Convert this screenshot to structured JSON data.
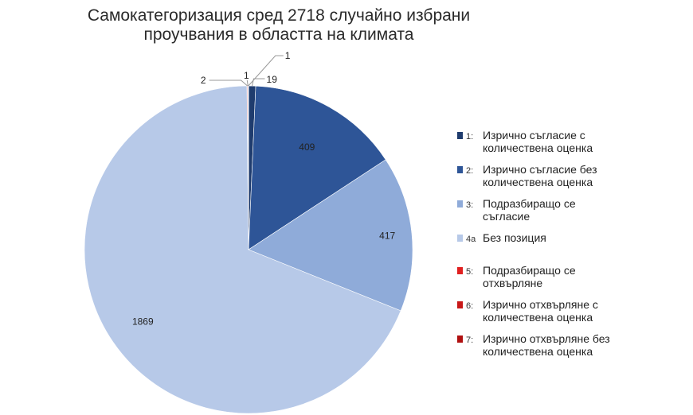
{
  "title_lines": [
    "Самокатегоризация сред 2718 случайно избрани",
    "проучвания в областта на климата"
  ],
  "chart_data": {
    "type": "pie",
    "title": "Самокатегоризация сред 2718 случайно избрани проучвания в областта на климата",
    "start_angle_deg": 0,
    "direction": "clockwise",
    "slices": [
      {
        "code": "1:",
        "label": "Изрично съгласие с количествена оценка",
        "value": 19,
        "color": "#1f3c6e"
      },
      {
        "code": "2:",
        "label": "Изрично съгласие без количествена оценка",
        "value": 409,
        "color": "#2e5597"
      },
      {
        "code": "3:",
        "label": "Подразбиращо се съгласие",
        "value": 417,
        "color": "#8fabd9"
      },
      {
        "code": "4a",
        "label": "Без позиция",
        "value": 1869,
        "color": "#b7c9e8"
      },
      {
        "code": "5:",
        "label": "Подразбиращо се отхвърляне",
        "value": 2,
        "color": "#e02020"
      },
      {
        "code": "6:",
        "label": "Изрично отхвърляне с количествена оценка",
        "value": 1,
        "color": "#c81818"
      },
      {
        "code": "7:",
        "label": "Изрично отхвърляне без количествена оценка",
        "value": 1,
        "color": "#b01010"
      }
    ],
    "legend_position": "right",
    "legend_lines": [
      [
        "Изрично съгласие с",
        "количествена оценка"
      ],
      [
        "Изрично съгласие без",
        "количествена оценка"
      ],
      [
        "Подразбиращо се",
        "съгласие"
      ],
      [
        "Без позиция"
      ],
      [
        "Подразбиращо се",
        "отхвърляне"
      ],
      [
        "Изрично отхвърляне с",
        "количествена оценка"
      ],
      [
        "Изрично отхвърляне без",
        "количествена оценка"
      ]
    ]
  }
}
